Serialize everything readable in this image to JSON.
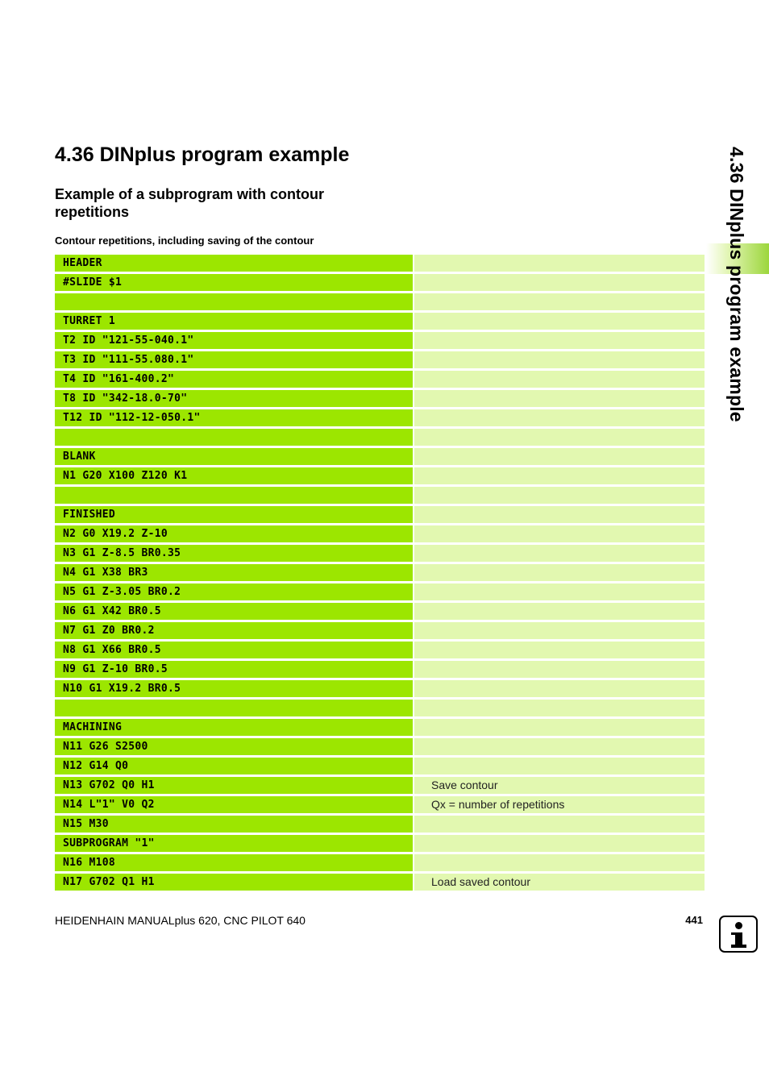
{
  "page": {
    "section_title": "4.36 DINplus program example",
    "subsection_title": "Example of a subprogram with contour repetitions",
    "table_caption": "Contour repetitions, including saving of the contour",
    "side_tab_title": "4.36 DINplus program example"
  },
  "program": {
    "rows": [
      {
        "code": "HEADER",
        "comment": ""
      },
      {
        "code": "#SLIDE $1",
        "comment": ""
      },
      {
        "code": "",
        "comment": ""
      },
      {
        "code": "TURRET 1",
        "comment": ""
      },
      {
        "code": "T2 ID \"121-55-040.1\"",
        "comment": ""
      },
      {
        "code": "T3 ID \"111-55.080.1\"",
        "comment": ""
      },
      {
        "code": "T4 ID \"161-400.2\"",
        "comment": ""
      },
      {
        "code": "T8 ID \"342-18.0-70\"",
        "comment": ""
      },
      {
        "code": "T12 ID \"112-12-050.1\"",
        "comment": ""
      },
      {
        "code": "",
        "comment": ""
      },
      {
        "code": "BLANK",
        "comment": ""
      },
      {
        "code": "N1 G20 X100 Z120 K1",
        "comment": ""
      },
      {
        "code": "",
        "comment": ""
      },
      {
        "code": "FINISHED",
        "comment": ""
      },
      {
        "code": "N2 G0 X19.2 Z-10",
        "comment": ""
      },
      {
        "code": "N3 G1 Z-8.5 BR0.35",
        "comment": ""
      },
      {
        "code": "N4 G1 X38 BR3",
        "comment": ""
      },
      {
        "code": "N5 G1 Z-3.05 BR0.2",
        "comment": ""
      },
      {
        "code": "N6 G1 X42 BR0.5",
        "comment": ""
      },
      {
        "code": "N7 G1 Z0 BR0.2",
        "comment": ""
      },
      {
        "code": "N8 G1 X66 BR0.5",
        "comment": ""
      },
      {
        "code": "N9 G1 Z-10 BR0.5",
        "comment": ""
      },
      {
        "code": "N10 G1 X19.2 BR0.5",
        "comment": ""
      },
      {
        "code": "",
        "comment": ""
      },
      {
        "code": "MACHINING",
        "comment": ""
      },
      {
        "code": "N11 G26 S2500",
        "comment": ""
      },
      {
        "code": "N12 G14 Q0",
        "comment": ""
      },
      {
        "code": "N13 G702 Q0 H1",
        "comment": "Save contour"
      },
      {
        "code": "N14 L\"1\" V0 Q2",
        "comment": "Qx = number of repetitions"
      },
      {
        "code": "N15 M30",
        "comment": ""
      },
      {
        "code": "SUBPROGRAM \"1\"",
        "comment": ""
      },
      {
        "code": "N16 M108",
        "comment": ""
      },
      {
        "code": "N17 G702 Q1 H1",
        "comment": "Load saved contour"
      }
    ]
  },
  "footer": {
    "manual_title": "HEIDENHAIN MANUALplus 620, CNC PILOT 640",
    "page_number": "441"
  },
  "icons": {
    "info": "info-icon"
  },
  "colors": {
    "code_background": "#9ce600",
    "comment_background": "#e2f8b0",
    "side_tab_accent": "#9cd63c"
  }
}
